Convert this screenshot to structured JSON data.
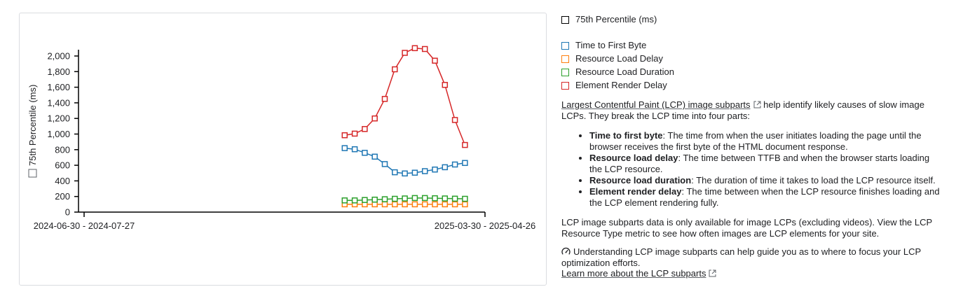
{
  "chart_data": {
    "type": "line",
    "ylabel": "75th Percentile (ms)",
    "ylim": [
      0,
      2000
    ],
    "yticks": [
      0,
      200,
      400,
      600,
      800,
      1000,
      1200,
      1400,
      1600,
      1800,
      2000
    ],
    "ytick_labels": [
      "0",
      "200",
      "400",
      "600",
      "800",
      "1,000",
      "1,200",
      "1,400",
      "1,600",
      "1,800",
      "2,000"
    ],
    "x_range_labels": [
      "2024-06-30 - 2024-07-27",
      "2025-03-30 - 2025-04-26"
    ],
    "x_count": 41,
    "x_first_index": 26,
    "legend_position": "right",
    "series": [
      {
        "name": "Time to First Byte",
        "color": "#1f77b4",
        "values": [
          820,
          805,
          760,
          710,
          615,
          510,
          495,
          505,
          525,
          545,
          575,
          610,
          630
        ]
      },
      {
        "name": "Resource Load Delay",
        "color": "#ff7f0e",
        "values": [
          100,
          100,
          100,
          100,
          100,
          100,
          100,
          100,
          100,
          100,
          100,
          100,
          100
        ]
      },
      {
        "name": "Resource Load Duration",
        "color": "#2ca02c",
        "values": [
          150,
          150,
          155,
          160,
          165,
          170,
          175,
          180,
          180,
          178,
          175,
          172,
          170
        ]
      },
      {
        "name": "Element Render Delay",
        "color": "#d62728",
        "values": [
          985,
          1005,
          1065,
          1200,
          1450,
          1830,
          2040,
          2100,
          2090,
          1940,
          1630,
          1180,
          860
        ]
      }
    ]
  },
  "legend": {
    "header": "75th Percentile (ms)",
    "items": [
      {
        "label": "Time to First Byte",
        "color": "#1f77b4"
      },
      {
        "label": "Resource Load Delay",
        "color": "#ff7f0e"
      },
      {
        "label": "Resource Load Duration",
        "color": "#2ca02c"
      },
      {
        "label": "Element Render Delay",
        "color": "#d62728"
      }
    ]
  },
  "description": {
    "link_text": "Largest Contentful Paint (LCP) image subparts",
    "intro_rest": " help identify likely causes of slow image LCPs. They break the LCP time into four parts:",
    "parts": [
      {
        "term": "Time to first byte",
        "text": ": The time from when the user initiates loading the page until the browser receives the first byte of the HTML document response."
      },
      {
        "term": "Resource load delay",
        "text": ": The time between TTFB and when the browser starts loading the LCP resource."
      },
      {
        "term": "Resource load duration",
        "text": ": The duration of time it takes to load the LCP resource itself."
      },
      {
        "term": "Element render delay",
        "text": ": The time between when the LCP resource finishes loading and the LCP element rendering fully."
      }
    ],
    "availability": "LCP image subparts data is only available for image LCPs (excluding videos). View the LCP Resource Type metric to see how often images are LCP elements for your site.",
    "guide": "Understanding LCP image subparts can help guide you as to where to focus your LCP optimization efforts.",
    "learn_more": "Learn more about the LCP subparts"
  }
}
